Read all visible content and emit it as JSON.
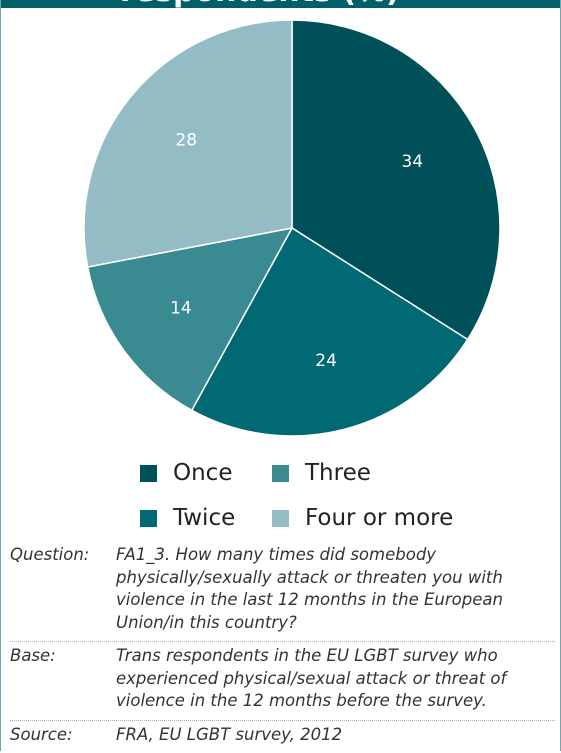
{
  "header": {
    "title_fragment": "respondents (%)"
  },
  "chart_data": {
    "type": "pie",
    "categories": [
      "Once",
      "Twice",
      "Three",
      "Four or more"
    ],
    "values": [
      34,
      24,
      14,
      28
    ],
    "colors": [
      "#00505a",
      "#006974",
      "#3a8a92",
      "#93bcc4"
    ],
    "label_colors": [
      "#ffffff",
      "#ffffff",
      "#ffffff",
      "#ffffff"
    ],
    "legend_placement": "bottom"
  },
  "legend": [
    {
      "label": "Once",
      "color": "#00505a"
    },
    {
      "label": "Three",
      "color": "#3a8a92"
    },
    {
      "label": "Twice",
      "color": "#006974"
    },
    {
      "label": "Four or more",
      "color": "#93bcc4"
    }
  ],
  "notes": [
    {
      "label": "Question:",
      "text": "FA1_3. How many times did somebody physically/sexually attack or threaten you with violence in the last 12 months in the European Union/in this country?"
    },
    {
      "label": "Base:",
      "text": "Trans respondents in the EU LGBT survey who experienced physical/sexual attack or threat of violence in the 12 months before the survey."
    },
    {
      "label": "Source:",
      "text": "FRA, EU LGBT survey, 2012"
    }
  ]
}
